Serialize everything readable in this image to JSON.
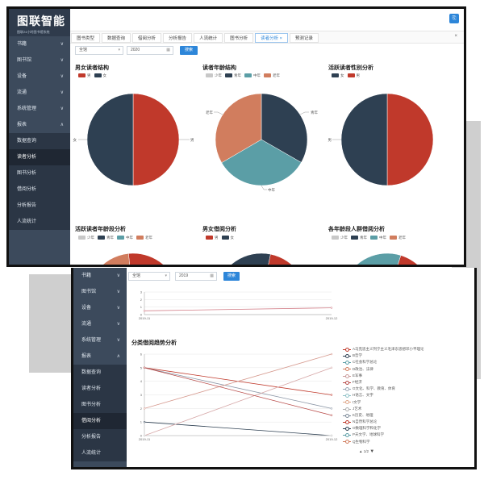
{
  "sidebar_top": {
    "logo_text": "图联智能",
    "logo_sub": "图联24小时图书馆系统",
    "items": [
      {
        "label": "书籍",
        "chevron": "∨"
      },
      {
        "label": "图书馆",
        "chevron": "∨"
      },
      {
        "label": "设备",
        "chevron": "∨"
      },
      {
        "label": "流通",
        "chevron": "∨"
      },
      {
        "label": "系统管理",
        "chevron": "∨"
      },
      {
        "label": "报表",
        "chevron": "∧"
      }
    ],
    "subitems": [
      "数据查询",
      "读者分析",
      "图书分析",
      "借阅分析",
      "分析报告",
      "人流统计"
    ]
  },
  "sidebar_bottom": {
    "items": [
      {
        "label": "书籍",
        "chevron": "∨"
      },
      {
        "label": "图书馆",
        "chevron": "∨"
      },
      {
        "label": "设备",
        "chevron": "∨"
      },
      {
        "label": "流通",
        "chevron": "∨"
      },
      {
        "label": "系统管理",
        "chevron": "∨"
      },
      {
        "label": "报表",
        "chevron": "∧"
      }
    ],
    "subitems": [
      "数据查询",
      "读者分析",
      "图书分析",
      "借阅分析",
      "分析报告",
      "人流统计"
    ]
  },
  "header": {
    "top_button_icon": "user-icon",
    "top_button_glyph": "⎘"
  },
  "tabs": [
    {
      "label": "图书类型"
    },
    {
      "label": "数据查询"
    },
    {
      "label": "借阅分析"
    },
    {
      "label": "分析报告"
    },
    {
      "label": "人流统计"
    },
    {
      "label": "图书分析"
    },
    {
      "label": "读者分析",
      "close": "×"
    },
    {
      "label": "预测记录"
    }
  ],
  "tabs_close": "×",
  "filter_top": {
    "select_value": "全馆",
    "year_value": "2020",
    "search_label": "搜索"
  },
  "filter_bottom": {
    "select_value": "全馆",
    "year_value": "2019",
    "search_label": "搜索"
  },
  "colors": {
    "red": "#c0392b",
    "navy": "#2e4052",
    "teal": "#5b9ea6",
    "orange": "#d17d5e",
    "gray": "#c8c8c8",
    "accent": "#2d86d9"
  },
  "chart_data": [
    {
      "type": "pie",
      "title": "男女读者结构",
      "legend": [
        "男",
        "女"
      ],
      "slices": [
        {
          "name": "男",
          "value": 50
        },
        {
          "name": "女",
          "value": 50
        }
      ],
      "labels": [
        "男",
        "女"
      ]
    },
    {
      "type": "pie",
      "title": "读者年龄结构",
      "legend": [
        "少年",
        "青年",
        "中年",
        "老年"
      ],
      "slices": [
        {
          "name": "少年",
          "value": 0
        },
        {
          "name": "青年",
          "value": 33.3
        },
        {
          "name": "中年",
          "value": 33.3
        },
        {
          "name": "老年",
          "value": 33.4
        }
      ],
      "labels": [
        "青年",
        "中年",
        "老年"
      ]
    },
    {
      "type": "pie",
      "title": "活跃读者性别分析",
      "legend": [
        "女",
        "男"
      ],
      "slices": [
        {
          "name": "女",
          "value": 50
        },
        {
          "name": "男",
          "value": 50
        }
      ],
      "labels": [
        "男"
      ]
    },
    {
      "type": "pie",
      "title": "活跃读者年龄段分析",
      "legend": [
        "少年",
        "青年",
        "中年",
        "老年"
      ]
    },
    {
      "type": "pie",
      "title": "男女借阅分析",
      "legend": [
        "男",
        "女"
      ]
    },
    {
      "type": "pie",
      "title": "各年龄段人群借阅分析",
      "legend": [
        "少年",
        "青年",
        "中年",
        "老年"
      ]
    },
    {
      "type": "line",
      "title": "",
      "x": [
        "2019-11",
        "2019-12"
      ],
      "ylim": [
        0,
        3
      ],
      "yticks": [
        "0",
        "1",
        "2",
        "3"
      ],
      "series": [
        {
          "values": [
            0.5,
            0.9
          ]
        }
      ]
    },
    {
      "type": "line",
      "title": "分类借阅趋势分析",
      "x": [
        "2019-11",
        "2019-12"
      ],
      "ylim": [
        0,
        6
      ],
      "yticks": [
        "0",
        "1",
        "2",
        "3",
        "4",
        "5",
        "6"
      ],
      "series": [
        {
          "name": "A马克思主义列宁主义毛泽东思想邓小平理论",
          "values": [
            5,
            3
          ]
        },
        {
          "name": "B哲学",
          "values": [
            1,
            0
          ]
        },
        {
          "name": "C社会科学总论",
          "values": [
            5,
            2
          ]
        },
        {
          "name": "D政治、法律",
          "values": [
            2,
            6
          ]
        },
        {
          "name": "E军事",
          "values": [
            0,
            5
          ]
        },
        {
          "name": "F经济",
          "values": [
            5,
            1.5
          ]
        },
        {
          "name": "G文化、科学、教育、体育",
          "values": [
            0,
            0
          ]
        },
        {
          "name": "H语言、文字",
          "values": [
            0,
            0
          ]
        },
        {
          "name": "I文学",
          "values": [
            0,
            0
          ]
        },
        {
          "name": "J艺术",
          "values": [
            0,
            0
          ]
        },
        {
          "name": "K历史、地理",
          "values": [
            0,
            0
          ]
        },
        {
          "name": "N自然科学总论",
          "values": [
            0,
            0
          ]
        },
        {
          "name": "O数理科学和化学",
          "values": [
            0,
            0
          ]
        },
        {
          "name": "P天文学、地球科学",
          "values": [
            0,
            0
          ]
        },
        {
          "name": "Q生物科学",
          "values": [
            0,
            0
          ]
        }
      ],
      "pager": "1/2"
    }
  ]
}
